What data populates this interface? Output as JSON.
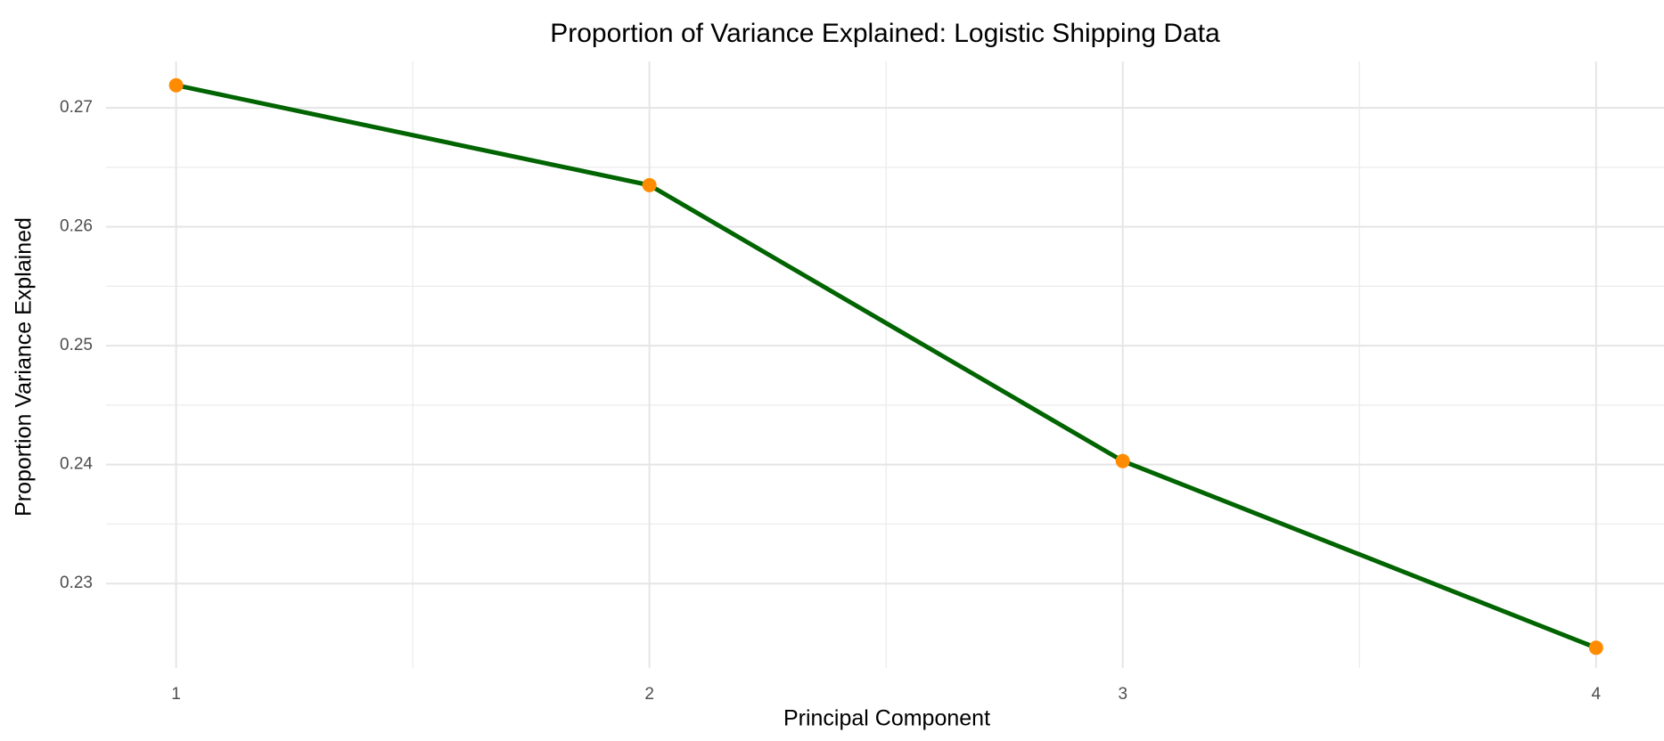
{
  "chart_data": {
    "type": "line",
    "title": "Proportion of Variance Explained: Logistic Shipping Data",
    "x_label": "Principal Component",
    "y_label": "Proportion Variance Explained",
    "x": [
      1,
      2,
      3,
      4
    ],
    "series": [
      {
        "name": "Proportion Variance Explained",
        "line_color": "#006400",
        "color": "#ff8c00",
        "values": [
          0.2719,
          0.2635,
          0.2403,
          0.2246
        ]
      }
    ],
    "xlim": [
      0.852,
      4.1435
    ],
    "xticks": [
      1,
      2,
      3,
      4
    ],
    "ylim": [
      0.2229,
      0.2739
    ],
    "yticks": [
      0.23,
      0.24,
      0.25,
      0.26,
      0.27
    ],
    "grid": true
  }
}
